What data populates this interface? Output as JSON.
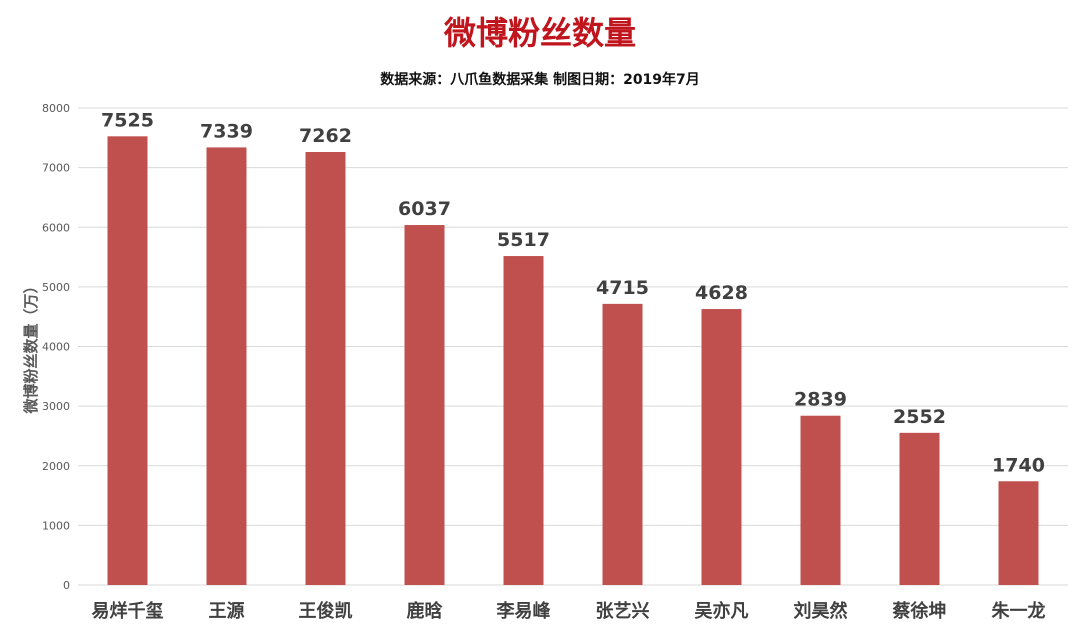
{
  "chart_data": {
    "type": "bar",
    "title": "微博粉丝数量",
    "subtitle": "数据来源：八爪鱼数据采集    制图日期：2019年7月",
    "ylabel": "微博粉丝数量（万）",
    "xlabel": "",
    "ylim": [
      0,
      8000
    ],
    "yticks": [
      "0",
      "1000",
      "2000",
      "3000",
      "4000",
      "5000",
      "6000",
      "7000",
      "8000"
    ],
    "grid": true,
    "categories": [
      "易烊千玺",
      "王源",
      "王俊凯",
      "鹿晗",
      "李易峰",
      "张艺兴",
      "吴亦凡",
      "刘昊然",
      "蔡徐坤",
      "朱一龙"
    ],
    "values": [
      7525,
      7339,
      7262,
      6037,
      5517,
      4715,
      4628,
      2839,
      2552,
      1740
    ],
    "data_labels": [
      "7525",
      "7339",
      "7262",
      "6037",
      "5517",
      "4715",
      "4628",
      "2839",
      "2552",
      "1740"
    ]
  },
  "colors": {
    "bar": "#c0504d",
    "title": "#c0151d",
    "grid": "#d9d9d9",
    "axis_text": "#595959",
    "label_text": "#404040"
  }
}
